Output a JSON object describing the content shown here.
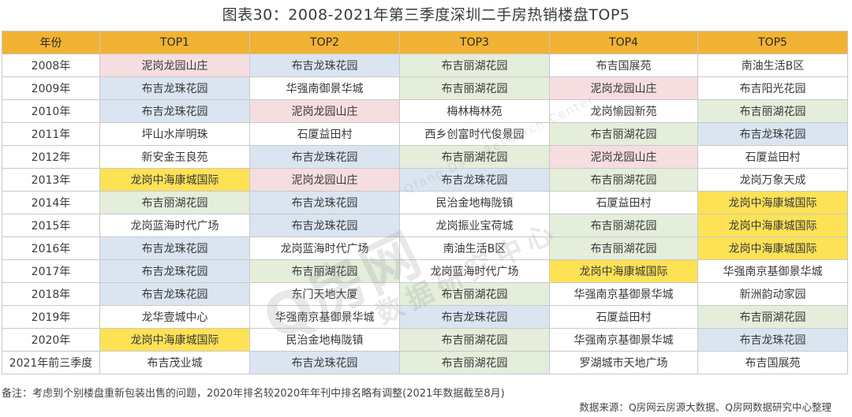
{
  "title": "图表30：2008-2021年第三季度深圳二手房热销楼盘TOP5",
  "colors": {
    "header": "#f2b233",
    "pink": "#f6dde0",
    "blue": "#dae5f1",
    "green": "#e4eedb",
    "yellow": "#fde256",
    "white": "#ffffff"
  },
  "table": {
    "headers": [
      "年份",
      "TOP1",
      "TOP2",
      "TOP3",
      "TOP4",
      "TOP5"
    ],
    "rows": [
      {
        "year": "2008年",
        "cells": [
          {
            "text": "泥岗龙园山庄",
            "color": "pink"
          },
          {
            "text": "布吉龙珠花园",
            "color": "blue"
          },
          {
            "text": "布吉丽湖花园",
            "color": "green"
          },
          {
            "text": "布吉国展苑",
            "color": "white"
          },
          {
            "text": "南油生活B区",
            "color": "white"
          }
        ]
      },
      {
        "year": "2009年",
        "cells": [
          {
            "text": "布吉龙珠花园",
            "color": "blue"
          },
          {
            "text": "华强南御景华城",
            "color": "white"
          },
          {
            "text": "布吉丽湖花园",
            "color": "green"
          },
          {
            "text": "泥岗龙园山庄",
            "color": "pink"
          },
          {
            "text": "布吉阳光花园",
            "color": "white"
          }
        ]
      },
      {
        "year": "2010年",
        "cells": [
          {
            "text": "布吉龙珠花园",
            "color": "blue"
          },
          {
            "text": "泥岗龙园山庄",
            "color": "pink"
          },
          {
            "text": "梅林梅林苑",
            "color": "white"
          },
          {
            "text": "龙岗愉园新苑",
            "color": "white"
          },
          {
            "text": "布吉丽湖花园",
            "color": "green"
          }
        ]
      },
      {
        "year": "2011年",
        "cells": [
          {
            "text": "坪山水岸明珠",
            "color": "white"
          },
          {
            "text": "石厦益田村",
            "color": "white"
          },
          {
            "text": "西乡创富时代俊景园",
            "color": "white"
          },
          {
            "text": "布吉丽湖花园",
            "color": "green"
          },
          {
            "text": "布吉龙珠花园",
            "color": "blue"
          }
        ]
      },
      {
        "year": "2012年",
        "cells": [
          {
            "text": "新安金玉良苑",
            "color": "white"
          },
          {
            "text": "布吉龙珠花园",
            "color": "blue"
          },
          {
            "text": "布吉丽湖花园",
            "color": "green"
          },
          {
            "text": "泥岗龙园山庄",
            "color": "pink"
          },
          {
            "text": "石厦益田村",
            "color": "white"
          }
        ]
      },
      {
        "year": "2013年",
        "cells": [
          {
            "text": "龙岗中海康城国际",
            "color": "yellow"
          },
          {
            "text": "泥岗龙园山庄",
            "color": "pink"
          },
          {
            "text": "布吉龙珠花园",
            "color": "blue"
          },
          {
            "text": "布吉丽湖花园",
            "color": "green"
          },
          {
            "text": "龙岗万象天成",
            "color": "white"
          }
        ]
      },
      {
        "year": "2014年",
        "cells": [
          {
            "text": "布吉丽湖花园",
            "color": "green"
          },
          {
            "text": "布吉龙珠花园",
            "color": "blue"
          },
          {
            "text": "民治金地梅陇镇",
            "color": "white"
          },
          {
            "text": "石厦益田村",
            "color": "white"
          },
          {
            "text": "龙岗中海康城国际",
            "color": "yellow"
          }
        ]
      },
      {
        "year": "2015年",
        "cells": [
          {
            "text": "龙岗蓝海时代广场",
            "color": "white"
          },
          {
            "text": "布吉龙珠花园",
            "color": "blue"
          },
          {
            "text": "龙岗振业宝荷城",
            "color": "white"
          },
          {
            "text": "布吉丽湖花园",
            "color": "green"
          },
          {
            "text": "龙岗中海康城国际",
            "color": "yellow"
          }
        ]
      },
      {
        "year": "2016年",
        "cells": [
          {
            "text": "布吉龙珠花园",
            "color": "blue"
          },
          {
            "text": "龙岗蓝海时代广场",
            "color": "white"
          },
          {
            "text": "南油生活B区",
            "color": "white"
          },
          {
            "text": "布吉丽湖花园",
            "color": "green"
          },
          {
            "text": "龙岗中海康城国际",
            "color": "yellow"
          }
        ]
      },
      {
        "year": "2017年",
        "cells": [
          {
            "text": "布吉龙珠花园",
            "color": "blue"
          },
          {
            "text": "布吉丽湖花园",
            "color": "green"
          },
          {
            "text": "龙岗蓝海时代广场",
            "color": "white"
          },
          {
            "text": "龙岗中海康城国际",
            "color": "yellow"
          },
          {
            "text": "华强南京基御景华城",
            "color": "white"
          }
        ]
      },
      {
        "year": "2018年",
        "cells": [
          {
            "text": "布吉龙珠花园",
            "color": "blue"
          },
          {
            "text": "东门天地大厦",
            "color": "white"
          },
          {
            "text": "布吉丽湖花园",
            "color": "green"
          },
          {
            "text": "华强南京基御景华城",
            "color": "white"
          },
          {
            "text": "新洲韵动家园",
            "color": "white"
          }
        ]
      },
      {
        "year": "2019年",
        "cells": [
          {
            "text": "龙华壹城中心",
            "color": "white"
          },
          {
            "text": "华强南京基御景华城",
            "color": "white"
          },
          {
            "text": "布吉龙珠花园",
            "color": "blue"
          },
          {
            "text": "石厦益田村",
            "color": "white"
          },
          {
            "text": "布吉丽湖花园",
            "color": "green"
          }
        ]
      },
      {
        "year": "2020年",
        "cells": [
          {
            "text": "龙岗中海康城国际",
            "color": "yellow"
          },
          {
            "text": "民治金地梅陇镇",
            "color": "white"
          },
          {
            "text": "布吉丽湖花园",
            "color": "green"
          },
          {
            "text": "华强南京基御景华城",
            "color": "white"
          },
          {
            "text": "布吉龙珠花园",
            "color": "blue"
          }
        ]
      },
      {
        "year": "2021年前三季度",
        "cells": [
          {
            "text": "布吉茂业城",
            "color": "white"
          },
          {
            "text": "布吉龙珠花园",
            "color": "blue"
          },
          {
            "text": "布吉丽湖花园",
            "color": "green"
          },
          {
            "text": "罗湖城市天地广场",
            "color": "white"
          },
          {
            "text": "布吉国展苑",
            "color": "white"
          }
        ]
      }
    ]
  },
  "watermark": {
    "brand": "Q房网",
    "sub": "数据研究中心",
    "english": "Qfang Data Research Center"
  },
  "note": "备注：考虑到个别楼盘重新包装出售的问题，2020年排名较2020年年刊中排名略有调整(2021年数据截至8月)",
  "source": "数据来源：Q房网云房源大数据、Q房网数据研究中心整理"
}
